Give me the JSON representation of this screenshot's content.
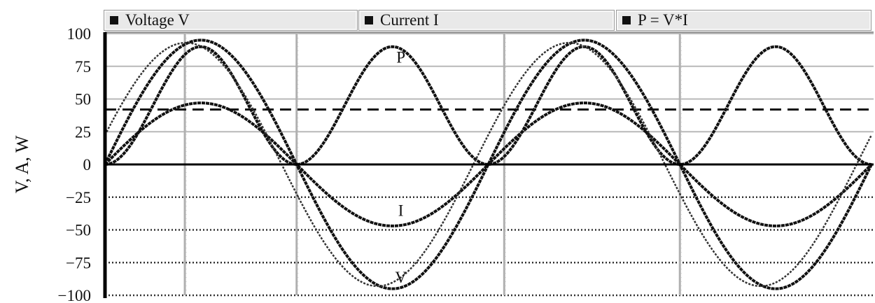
{
  "chart_data": {
    "type": "line",
    "ylabel": "V, A, W",
    "xlabel": "",
    "title": "",
    "ylim": [
      -100,
      100
    ],
    "yticks": [
      100,
      75,
      50,
      25,
      0,
      -25,
      -50,
      -75,
      -100
    ],
    "ytick_labels": [
      "100",
      "75",
      "50",
      "25",
      "0",
      "−25",
      "−50",
      "−75",
      "−100"
    ],
    "x_range_degrees": [
      0,
      720
    ],
    "x_gridlines_degrees": [
      75,
      180,
      375,
      540,
      735
    ],
    "grid": true,
    "legend": {
      "placement": "top",
      "items": [
        "Voltage V",
        "Current I",
        "P = V*I"
      ]
    },
    "series": [
      {
        "name": "Voltage V",
        "amplitude": 95,
        "phase_degrees": 0,
        "x": [
          0,
          45,
          90,
          135,
          180,
          225,
          270,
          315,
          360,
          405,
          450,
          495,
          540,
          585,
          630,
          675,
          720
        ],
        "values": [
          0,
          67,
          95,
          67,
          0,
          -67,
          -95,
          -67,
          0,
          67,
          95,
          67,
          0,
          -67,
          -95,
          -67,
          0
        ]
      },
      {
        "name": "Current I",
        "amplitude": 47,
        "phase_degrees": 0,
        "x": [
          0,
          45,
          90,
          135,
          180,
          225,
          270,
          315,
          360,
          405,
          450,
          495,
          540,
          585,
          630,
          675,
          720
        ],
        "values": [
          0,
          33,
          47,
          33,
          0,
          -33,
          -47,
          -33,
          0,
          33,
          47,
          33,
          0,
          -33,
          -47,
          -33,
          0
        ]
      },
      {
        "name": "P = V*I",
        "peak": 90,
        "x": [
          0,
          45,
          90,
          135,
          180,
          225,
          270,
          315,
          360,
          405,
          450,
          495,
          540,
          585,
          630,
          675,
          720
        ],
        "values": [
          0,
          45,
          90,
          45,
          0,
          45,
          90,
          45,
          0,
          45,
          90,
          45,
          0,
          45,
          90,
          45,
          0
        ]
      }
    ],
    "average_power_line": 42,
    "annotations": [
      {
        "text": "P",
        "x": 270,
        "y": 82
      },
      {
        "text": "I",
        "x": 270,
        "y": -35
      },
      {
        "text": "V",
        "x": 270,
        "y": -86
      }
    ]
  }
}
